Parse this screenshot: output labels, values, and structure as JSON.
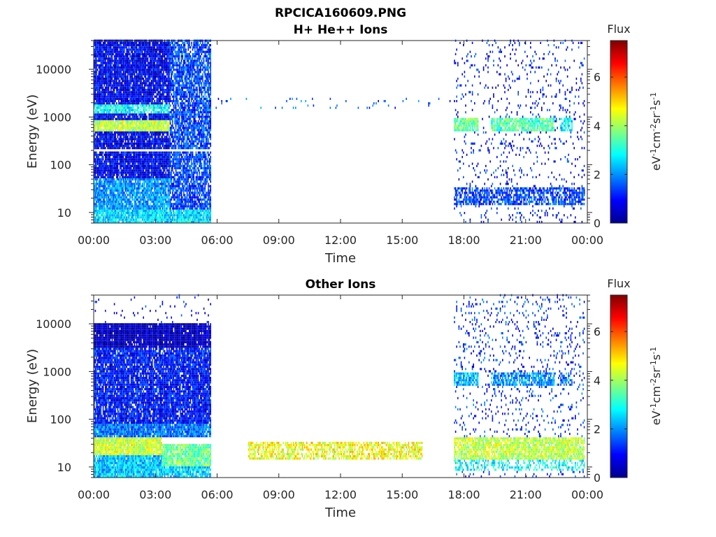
{
  "figure": {
    "filename_title": "RPCICA160609.PNG"
  },
  "colors": {
    "background": "#ffffff",
    "axis": "#262626",
    "title": "#000000",
    "colormap": [
      "#00008f",
      "#0000ff",
      "#0080ff",
      "#00ffff",
      "#80ff80",
      "#ffff00",
      "#ff8000",
      "#ff0000",
      "#800000"
    ]
  },
  "chart_data": [
    {
      "type": "heatmap",
      "title": "H+ He++ Ions",
      "xlabel": "Time",
      "ylabel": "Energy (eV)",
      "x_scale": "time",
      "x_range_hours": [
        0,
        24
      ],
      "x_ticks": [
        0,
        3,
        6,
        9,
        12,
        15,
        18,
        21,
        24
      ],
      "x_tick_labels": [
        "00:00",
        "03:00",
        "06:00",
        "09:00",
        "12:00",
        "15:00",
        "18:00",
        "21:00",
        "00:00"
      ],
      "y_scale": "log",
      "y_range": [
        6,
        40000
      ],
      "y_ticks": [
        10,
        100,
        1000,
        10000
      ],
      "y_tick_labels": [
        "10",
        "100",
        "1000",
        "10000"
      ],
      "colorbar": {
        "title": "Flux",
        "units": "eV-1cm-2sr-1s-1",
        "range": [
          0,
          7.5
        ],
        "ticks": [
          0,
          2,
          4,
          6
        ],
        "tick_labels": [
          "0",
          "2",
          "4",
          "6"
        ]
      },
      "regions": [
        {
          "t": [
            0,
            3.7
          ],
          "e": [
            6,
            40000
          ],
          "value": 0.8,
          "density": 0.92
        },
        {
          "t": [
            0,
            3.7
          ],
          "e": [
            12,
            50
          ],
          "value": 2.0,
          "density": 0.9
        },
        {
          "t": [
            0,
            3.7
          ],
          "e": [
            6,
            12
          ],
          "value": 2.6,
          "density": 0.95
        },
        {
          "t": [
            0,
            3.7
          ],
          "e": [
            500,
            900
          ],
          "value": 4.2,
          "density": 0.95
        },
        {
          "t": [
            0,
            3.7
          ],
          "e": [
            1200,
            1800
          ],
          "value": 2.8,
          "density": 0.8
        },
        {
          "t": [
            3.7,
            5.7
          ],
          "e": [
            6,
            40000
          ],
          "value": 1.4,
          "density": 0.8
        },
        {
          "t": [
            3.7,
            5.7
          ],
          "e": [
            6,
            12
          ],
          "value": 2.6,
          "density": 0.95
        },
        {
          "t": [
            5.7,
            17.5
          ],
          "e": [
            1500,
            2500
          ],
          "value": 1.5,
          "density": 0.03
        },
        {
          "t": [
            17.5,
            23.9
          ],
          "e": [
            6,
            40000
          ],
          "value": 1.0,
          "density": 0.08
        },
        {
          "t": [
            17.5,
            23.9
          ],
          "e": [
            15,
            35
          ],
          "value": 1.4,
          "density": 0.7
        },
        {
          "t": [
            17.5,
            18.7
          ],
          "e": [
            500,
            1000
          ],
          "value": 3.6,
          "density": 0.9
        },
        {
          "t": [
            19.3,
            22.4
          ],
          "e": [
            500,
            1000
          ],
          "value": 3.4,
          "density": 0.85
        },
        {
          "t": [
            22.7,
            23.3
          ],
          "e": [
            500,
            1000
          ],
          "value": 2.6,
          "density": 0.7
        }
      ],
      "gaps": [
        {
          "t": [
            0,
            5.7
          ],
          "e": [
            190,
            205
          ]
        }
      ]
    },
    {
      "type": "heatmap",
      "title": "Other Ions",
      "xlabel": "Time",
      "ylabel": "Energy (eV)",
      "x_scale": "time",
      "x_range_hours": [
        0,
        24
      ],
      "x_ticks": [
        0,
        3,
        6,
        9,
        12,
        15,
        18,
        21,
        24
      ],
      "x_tick_labels": [
        "00:00",
        "03:00",
        "06:00",
        "09:00",
        "12:00",
        "15:00",
        "18:00",
        "21:00",
        "00:00"
      ],
      "y_scale": "log",
      "y_range": [
        6,
        40000
      ],
      "y_ticks": [
        10,
        100,
        1000,
        10000
      ],
      "y_tick_labels": [
        "10",
        "100",
        "1000",
        "10000"
      ],
      "colorbar": {
        "title": "Flux",
        "units": "eV-1cm-2sr-1s-1",
        "range": [
          0,
          7.5
        ],
        "ticks": [
          0,
          2,
          4,
          6
        ],
        "tick_labels": [
          "0",
          "2",
          "4",
          "6"
        ]
      },
      "regions": [
        {
          "t": [
            0,
            5.7
          ],
          "e": [
            10500,
            40000
          ],
          "value": 1.0,
          "density": 0.04
        },
        {
          "t": [
            0,
            5.7
          ],
          "e": [
            3000,
            10500
          ],
          "value": 0.3,
          "density": 0.95
        },
        {
          "t": [
            0,
            5.7
          ],
          "e": [
            80,
            3000
          ],
          "value": 1.0,
          "density": 0.9
        },
        {
          "t": [
            0,
            5.7
          ],
          "e": [
            40,
            80
          ],
          "value": 1.8,
          "density": 0.95
        },
        {
          "t": [
            0,
            3.3
          ],
          "e": [
            18,
            40
          ],
          "value": 4.3,
          "density": 0.95
        },
        {
          "t": [
            0,
            3.3
          ],
          "e": [
            6,
            18
          ],
          "value": 2.4,
          "density": 0.95
        },
        {
          "t": [
            3.3,
            5.7
          ],
          "e": [
            10,
            30
          ],
          "value": 3.6,
          "density": 0.9
        },
        {
          "t": [
            3.3,
            5.7
          ],
          "e": [
            6,
            10
          ],
          "value": 2.5,
          "density": 0.9
        },
        {
          "t": [
            7.5,
            16.0
          ],
          "e": [
            14,
            35
          ],
          "value": 4.6,
          "density": 0.65
        },
        {
          "t": [
            17.5,
            23.9
          ],
          "e": [
            6,
            40000
          ],
          "value": 1.2,
          "density": 0.09
        },
        {
          "t": [
            17.5,
            23.9
          ],
          "e": [
            14,
            40
          ],
          "value": 4.2,
          "density": 0.85
        },
        {
          "t": [
            17.5,
            23.9
          ],
          "e": [
            8,
            14
          ],
          "value": 2.8,
          "density": 0.4
        },
        {
          "t": [
            17.5,
            18.7
          ],
          "e": [
            500,
            1000
          ],
          "value": 2.3,
          "density": 0.85
        },
        {
          "t": [
            19.3,
            22.4
          ],
          "e": [
            500,
            1000
          ],
          "value": 2.0,
          "density": 0.75
        },
        {
          "t": [
            22.7,
            23.3
          ],
          "e": [
            500,
            1000
          ],
          "value": 1.8,
          "density": 0.6
        }
      ],
      "gaps": []
    }
  ]
}
